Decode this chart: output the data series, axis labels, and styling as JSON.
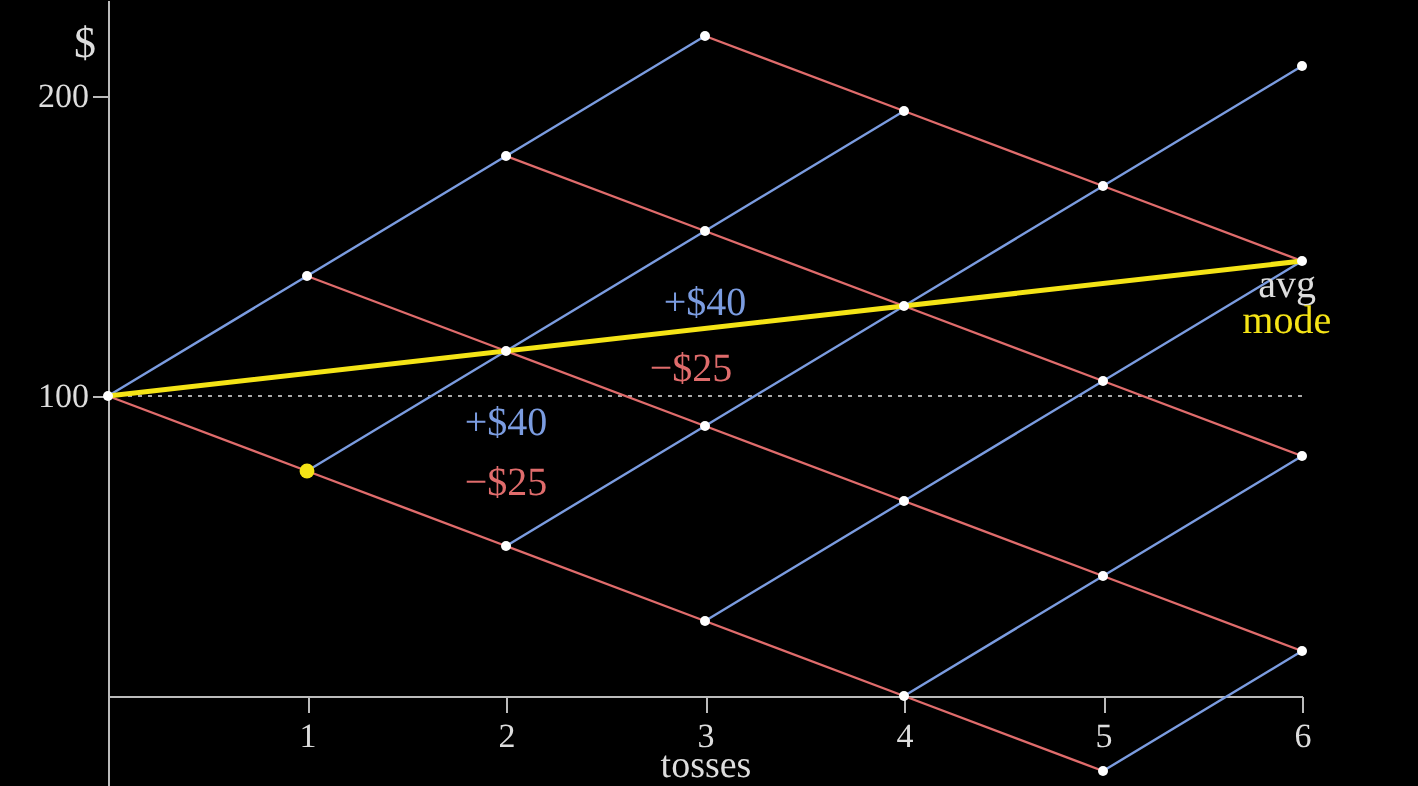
{
  "chart_data": {
    "type": "line",
    "xlabel": "tosses",
    "ylabel": "$",
    "xlim": [
      0,
      6
    ],
    "ylim": [
      -30,
      232
    ],
    "xticks": [
      1,
      2,
      3,
      4,
      5,
      6
    ],
    "yticks": [
      100,
      200
    ],
    "grid": false,
    "ref_lines": [
      {
        "axis": "y",
        "value": 100,
        "color": "#aaaaaa",
        "line_style": "dotted"
      }
    ],
    "series": [
      {
        "color": "#7b9ce0",
        "x": [
          0,
          1,
          2,
          3
        ],
        "values": [
          100,
          140,
          180,
          220
        ]
      },
      {
        "color": "#7b9ce0",
        "x": [
          1,
          2,
          3,
          4
        ],
        "values": [
          75,
          115,
          155,
          195
        ]
      },
      {
        "color": "#7b9ce0",
        "x": [
          2,
          3,
          4,
          5,
          6
        ],
        "values": [
          50,
          90,
          130,
          170,
          210
        ]
      },
      {
        "color": "#7b9ce0",
        "x": [
          3,
          4,
          5,
          6
        ],
        "values": [
          25,
          65,
          105,
          145
        ]
      },
      {
        "color": "#7b9ce0",
        "x": [
          4,
          5,
          6
        ],
        "values": [
          0,
          40,
          80
        ]
      },
      {
        "color": "#7b9ce0",
        "x": [
          5,
          6
        ],
        "values": [
          -25,
          15
        ]
      },
      {
        "color": "#e06c6c",
        "x": [
          0,
          1,
          2,
          3,
          4,
          5
        ],
        "values": [
          100,
          75,
          50,
          25,
          0,
          -25
        ]
      },
      {
        "color": "#e06c6c",
        "x": [
          1,
          2,
          3,
          4,
          5,
          6
        ],
        "values": [
          140,
          115,
          90,
          65,
          40,
          15
        ]
      },
      {
        "color": "#e06c6c",
        "x": [
          2,
          3,
          4,
          5,
          6
        ],
        "values": [
          180,
          155,
          130,
          105,
          80
        ]
      },
      {
        "color": "#e06c6c",
        "x": [
          3,
          4,
          5,
          6
        ],
        "values": [
          220,
          195,
          170,
          145
        ]
      },
      {
        "color": "#f5e416",
        "x": [
          0,
          6
        ],
        "values": [
          100,
          145
        ]
      },
      {
        "type": "scatter",
        "marker": "circle",
        "color": "#ffffff",
        "x": [
          0,
          1,
          2,
          2,
          2,
          3,
          3,
          3,
          3,
          4,
          4,
          4,
          4,
          5,
          5,
          5,
          5,
          6,
          6,
          6,
          6
        ],
        "values": [
          100,
          140,
          180,
          115,
          50,
          220,
          155,
          90,
          25,
          195,
          130,
          65,
          0,
          170,
          105,
          40,
          -25,
          210,
          145,
          80,
          15
        ]
      },
      {
        "type": "scatter",
        "marker": "circle",
        "color": "#f5e416",
        "x": [
          1
        ],
        "values": [
          75
        ]
      }
    ],
    "annotations": [
      "+$40",
      "−$25",
      "+$40",
      "−$25",
      "avg",
      "mode"
    ]
  }
}
